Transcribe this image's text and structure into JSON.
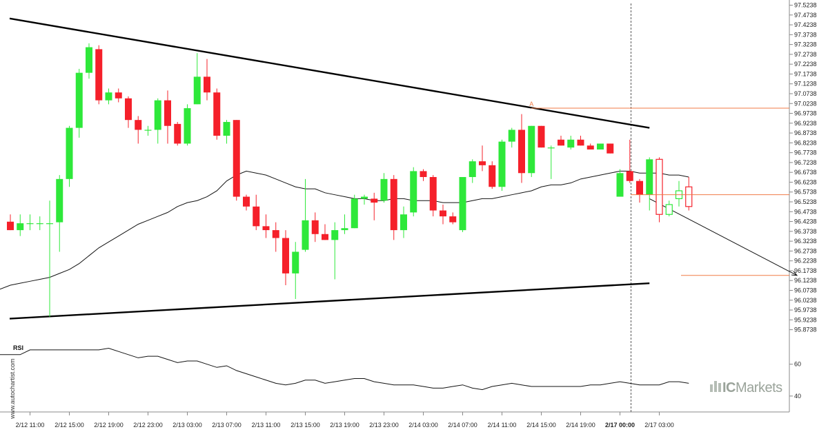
{
  "chart_data": {
    "type": "candlestick",
    "y_axis": {
      "ticks": [
        "97.5238",
        "97.4738",
        "97.4238",
        "97.3738",
        "97.3238",
        "97.2738",
        "97.2238",
        "97.1738",
        "97.1238",
        "97.0738",
        "97.0238",
        "96.9738",
        "96.9238",
        "96.8738",
        "96.8238",
        "96.7738",
        "96.7238",
        "96.6738",
        "96.6238",
        "96.5738",
        "96.5238",
        "96.4738",
        "96.4238",
        "96.3738",
        "96.3238",
        "96.2738",
        "96.2238",
        "96.1738",
        "96.1238",
        "96.0738",
        "96.0238",
        "95.9738",
        "95.9238",
        "95.8738"
      ],
      "range": [
        95.8738,
        97.5238
      ]
    },
    "x_axis": {
      "labels": [
        "2/12 11:00",
        "2/12 15:00",
        "2/12 19:00",
        "2/12 23:00",
        "2/13 03:00",
        "2/13 07:00",
        "2/13 11:00",
        "2/13 15:00",
        "2/13 19:00",
        "2/13 23:00",
        "2/14 03:00",
        "2/14 07:00",
        "2/14 11:00",
        "2/14 15:00",
        "2/14 19:00",
        "2/17 00:00",
        "2/17 03:00"
      ],
      "bold_label": "2/17 00:00"
    },
    "candles": [
      {
        "o": 96.423,
        "h": 96.46,
        "l": 96.38,
        "c": 96.38
      },
      {
        "o": 96.38,
        "h": 96.46,
        "l": 96.35,
        "c": 96.415
      },
      {
        "o": 96.415,
        "h": 96.46,
        "l": 96.38,
        "c": 96.415
      },
      {
        "o": 96.415,
        "h": 96.45,
        "l": 96.38,
        "c": 96.415
      },
      {
        "o": 96.415,
        "h": 96.53,
        "l": 95.94,
        "c": 96.415
      },
      {
        "o": 96.42,
        "h": 96.66,
        "l": 96.27,
        "c": 96.64
      },
      {
        "o": 96.64,
        "h": 96.91,
        "l": 96.6,
        "c": 96.9
      },
      {
        "o": 96.9,
        "h": 97.2,
        "l": 96.85,
        "c": 97.18
      },
      {
        "o": 97.18,
        "h": 97.33,
        "l": 97.15,
        "c": 97.31
      },
      {
        "o": 97.3,
        "h": 97.32,
        "l": 97.02,
        "c": 97.04
      },
      {
        "o": 97.04,
        "h": 97.1,
        "l": 97.02,
        "c": 97.08
      },
      {
        "o": 97.08,
        "h": 97.1,
        "l": 97.03,
        "c": 97.05
      },
      {
        "o": 97.05,
        "h": 97.06,
        "l": 96.9,
        "c": 96.94
      },
      {
        "o": 96.94,
        "h": 96.96,
        "l": 96.82,
        "c": 96.89
      },
      {
        "o": 96.89,
        "h": 96.91,
        "l": 96.86,
        "c": 96.89
      },
      {
        "o": 96.89,
        "h": 97.05,
        "l": 96.82,
        "c": 97.04
      },
      {
        "o": 97.04,
        "h": 97.09,
        "l": 96.82,
        "c": 96.91
      },
      {
        "o": 96.92,
        "h": 96.93,
        "l": 96.81,
        "c": 96.82
      },
      {
        "o": 96.82,
        "h": 97.02,
        "l": 96.81,
        "c": 97.0
      },
      {
        "o": 97.02,
        "h": 97.28,
        "l": 97.02,
        "c": 97.16
      },
      {
        "o": 97.16,
        "h": 97.25,
        "l": 97.04,
        "c": 97.08
      },
      {
        "o": 97.08,
        "h": 97.1,
        "l": 96.84,
        "c": 96.86
      },
      {
        "o": 96.86,
        "h": 96.94,
        "l": 96.82,
        "c": 96.93
      },
      {
        "o": 96.94,
        "h": 96.94,
        "l": 96.53,
        "c": 96.55
      },
      {
        "o": 96.55,
        "h": 96.56,
        "l": 96.48,
        "c": 96.5
      },
      {
        "o": 96.5,
        "h": 96.56,
        "l": 96.38,
        "c": 96.4
      },
      {
        "o": 96.4,
        "h": 96.46,
        "l": 96.34,
        "c": 96.38
      },
      {
        "o": 96.38,
        "h": 96.42,
        "l": 96.27,
        "c": 96.34
      },
      {
        "o": 96.34,
        "h": 96.38,
        "l": 96.1,
        "c": 96.16
      },
      {
        "o": 96.16,
        "h": 96.32,
        "l": 96.03,
        "c": 96.27
      },
      {
        "o": 96.28,
        "h": 96.64,
        "l": 96.27,
        "c": 96.43
      },
      {
        "o": 96.43,
        "h": 96.47,
        "l": 96.32,
        "c": 96.36
      },
      {
        "o": 96.36,
        "h": 96.41,
        "l": 96.33,
        "c": 96.33
      },
      {
        "o": 96.33,
        "h": 96.42,
        "l": 96.13,
        "c": 96.38
      },
      {
        "o": 96.38,
        "h": 96.46,
        "l": 96.36,
        "c": 96.39
      },
      {
        "o": 96.39,
        "h": 96.56,
        "l": 96.39,
        "c": 96.54
      },
      {
        "o": 96.54,
        "h": 96.56,
        "l": 96.51,
        "c": 96.55
      },
      {
        "o": 96.54,
        "h": 96.57,
        "l": 96.43,
        "c": 96.52
      },
      {
        "o": 96.53,
        "h": 96.67,
        "l": 96.52,
        "c": 96.64
      },
      {
        "o": 96.64,
        "h": 96.66,
        "l": 96.33,
        "c": 96.38
      },
      {
        "o": 96.38,
        "h": 96.5,
        "l": 96.34,
        "c": 96.46
      },
      {
        "o": 96.47,
        "h": 96.7,
        "l": 96.45,
        "c": 96.68
      },
      {
        "o": 96.68,
        "h": 96.69,
        "l": 96.63,
        "c": 96.65
      },
      {
        "o": 96.65,
        "h": 96.66,
        "l": 96.45,
        "c": 96.48
      },
      {
        "o": 96.48,
        "h": 96.51,
        "l": 96.41,
        "c": 96.45
      },
      {
        "o": 96.45,
        "h": 96.47,
        "l": 96.41,
        "c": 96.42
      },
      {
        "o": 96.38,
        "h": 96.65,
        "l": 96.37,
        "c": 96.65
      },
      {
        "o": 96.65,
        "h": 96.74,
        "l": 96.62,
        "c": 96.73
      },
      {
        "o": 96.73,
        "h": 96.81,
        "l": 96.68,
        "c": 96.71
      },
      {
        "o": 96.71,
        "h": 96.73,
        "l": 96.59,
        "c": 96.6
      },
      {
        "o": 96.6,
        "h": 96.84,
        "l": 96.58,
        "c": 96.83
      },
      {
        "o": 96.83,
        "h": 96.9,
        "l": 96.8,
        "c": 96.89
      },
      {
        "o": 96.89,
        "h": 96.97,
        "l": 96.62,
        "c": 96.67
      },
      {
        "o": 96.67,
        "h": 96.91,
        "l": 96.65,
        "c": 96.91
      },
      {
        "o": 96.91,
        "h": 96.91,
        "l": 96.8,
        "c": 96.8
      },
      {
        "o": 96.8,
        "h": 96.81,
        "l": 96.64,
        "c": 96.8
      },
      {
        "o": 96.84,
        "h": 96.86,
        "l": 96.81,
        "c": 96.81
      },
      {
        "o": 96.8,
        "h": 96.86,
        "l": 96.79,
        "c": 96.84
      },
      {
        "o": 96.84,
        "h": 96.86,
        "l": 96.81,
        "c": 96.81
      },
      {
        "o": 96.81,
        "h": 96.82,
        "l": 96.79,
        "c": 96.79
      },
      {
        "o": 96.79,
        "h": 96.82,
        "l": 96.79,
        "c": 96.82
      },
      {
        "o": 96.82,
        "h": 96.82,
        "l": 96.77,
        "c": 96.77
      },
      {
        "o": 96.55,
        "h": 96.69,
        "l": 96.55,
        "c": 96.67
      },
      {
        "o": 96.68,
        "h": 96.84,
        "l": 96.62,
        "c": 96.63
      },
      {
        "o": 96.63,
        "h": 96.64,
        "l": 96.52,
        "c": 96.56
      },
      {
        "o": 96.56,
        "h": 96.75,
        "l": 96.48,
        "c": 96.74
      },
      {
        "o": 96.74,
        "h": 96.75,
        "l": 96.42,
        "c": 96.46
      },
      {
        "o": 96.46,
        "h": 96.53,
        "l": 96.45,
        "c": 96.51
      },
      {
        "o": 96.54,
        "h": 96.63,
        "l": 96.5,
        "c": 96.58
      },
      {
        "o": 96.6,
        "h": 96.65,
        "l": 96.48,
        "c": 96.5
      }
    ],
    "moving_average": [
      96.1,
      96.11,
      96.12,
      96.13,
      96.14,
      96.16,
      96.18,
      96.21,
      96.25,
      96.29,
      96.32,
      96.35,
      96.38,
      96.41,
      96.43,
      96.45,
      96.47,
      96.5,
      96.52,
      96.53,
      96.55,
      96.58,
      96.63,
      96.66,
      96.68,
      96.67,
      96.66,
      96.64,
      96.62,
      96.6,
      96.59,
      96.59,
      96.57,
      96.56,
      96.55,
      96.54,
      96.54,
      96.53,
      96.53,
      96.54,
      96.54,
      96.53,
      96.53,
      96.53,
      96.52,
      96.52,
      96.52,
      96.53,
      96.54,
      96.54,
      96.55,
      96.56,
      96.57,
      96.58,
      96.6,
      96.61,
      96.61,
      96.62,
      96.64,
      96.65,
      96.66,
      96.67,
      96.68,
      96.68,
      96.67,
      96.67,
      96.67,
      96.66,
      96.66,
      96.65
    ],
    "chart_pattern": {
      "upper_line": [
        [
          0,
          97.456
        ],
        [
          65,
          96.9
        ]
      ],
      "lower_line": [
        [
          0,
          95.93
        ],
        [
          65,
          96.11
        ]
      ],
      "point_label": "A",
      "point_price": 97.0,
      "resistance_level": 97.0,
      "current_level": 96.56,
      "target_level": 96.15,
      "arrow_from": [
        65,
        96.54
      ],
      "arrow_to": [
        80,
        96.15
      ]
    },
    "rsi": {
      "title": "RSI",
      "ticks": [
        "60",
        "40"
      ],
      "range": [
        30,
        75
      ],
      "values": [
        66,
        66,
        69,
        69,
        69,
        69,
        69,
        69,
        69,
        69,
        70,
        68,
        66,
        64,
        65,
        65,
        63,
        61,
        62,
        62,
        60,
        58,
        59,
        56,
        54,
        52,
        50,
        48,
        47,
        48,
        50,
        50,
        48,
        49,
        50,
        51,
        51,
        49,
        48,
        47,
        47,
        47,
        46,
        45,
        45,
        46,
        47,
        45,
        44,
        46,
        47,
        48,
        47,
        46,
        46,
        46,
        46,
        46,
        46,
        47,
        47,
        48,
        49,
        48,
        47,
        47,
        47,
        49,
        49,
        48
      ],
      "ylim": [
        30,
        75
      ]
    }
  },
  "brand": {
    "ic": "IC",
    "markets": "Markets",
    "mark_color": "#9aa39a"
  },
  "watermark": "www.autochartist.com",
  "colors": {
    "up": "#2ee83a",
    "down": "#f5202a",
    "line": "#000000",
    "accent": "#f07a45",
    "grid": "#888888"
  }
}
